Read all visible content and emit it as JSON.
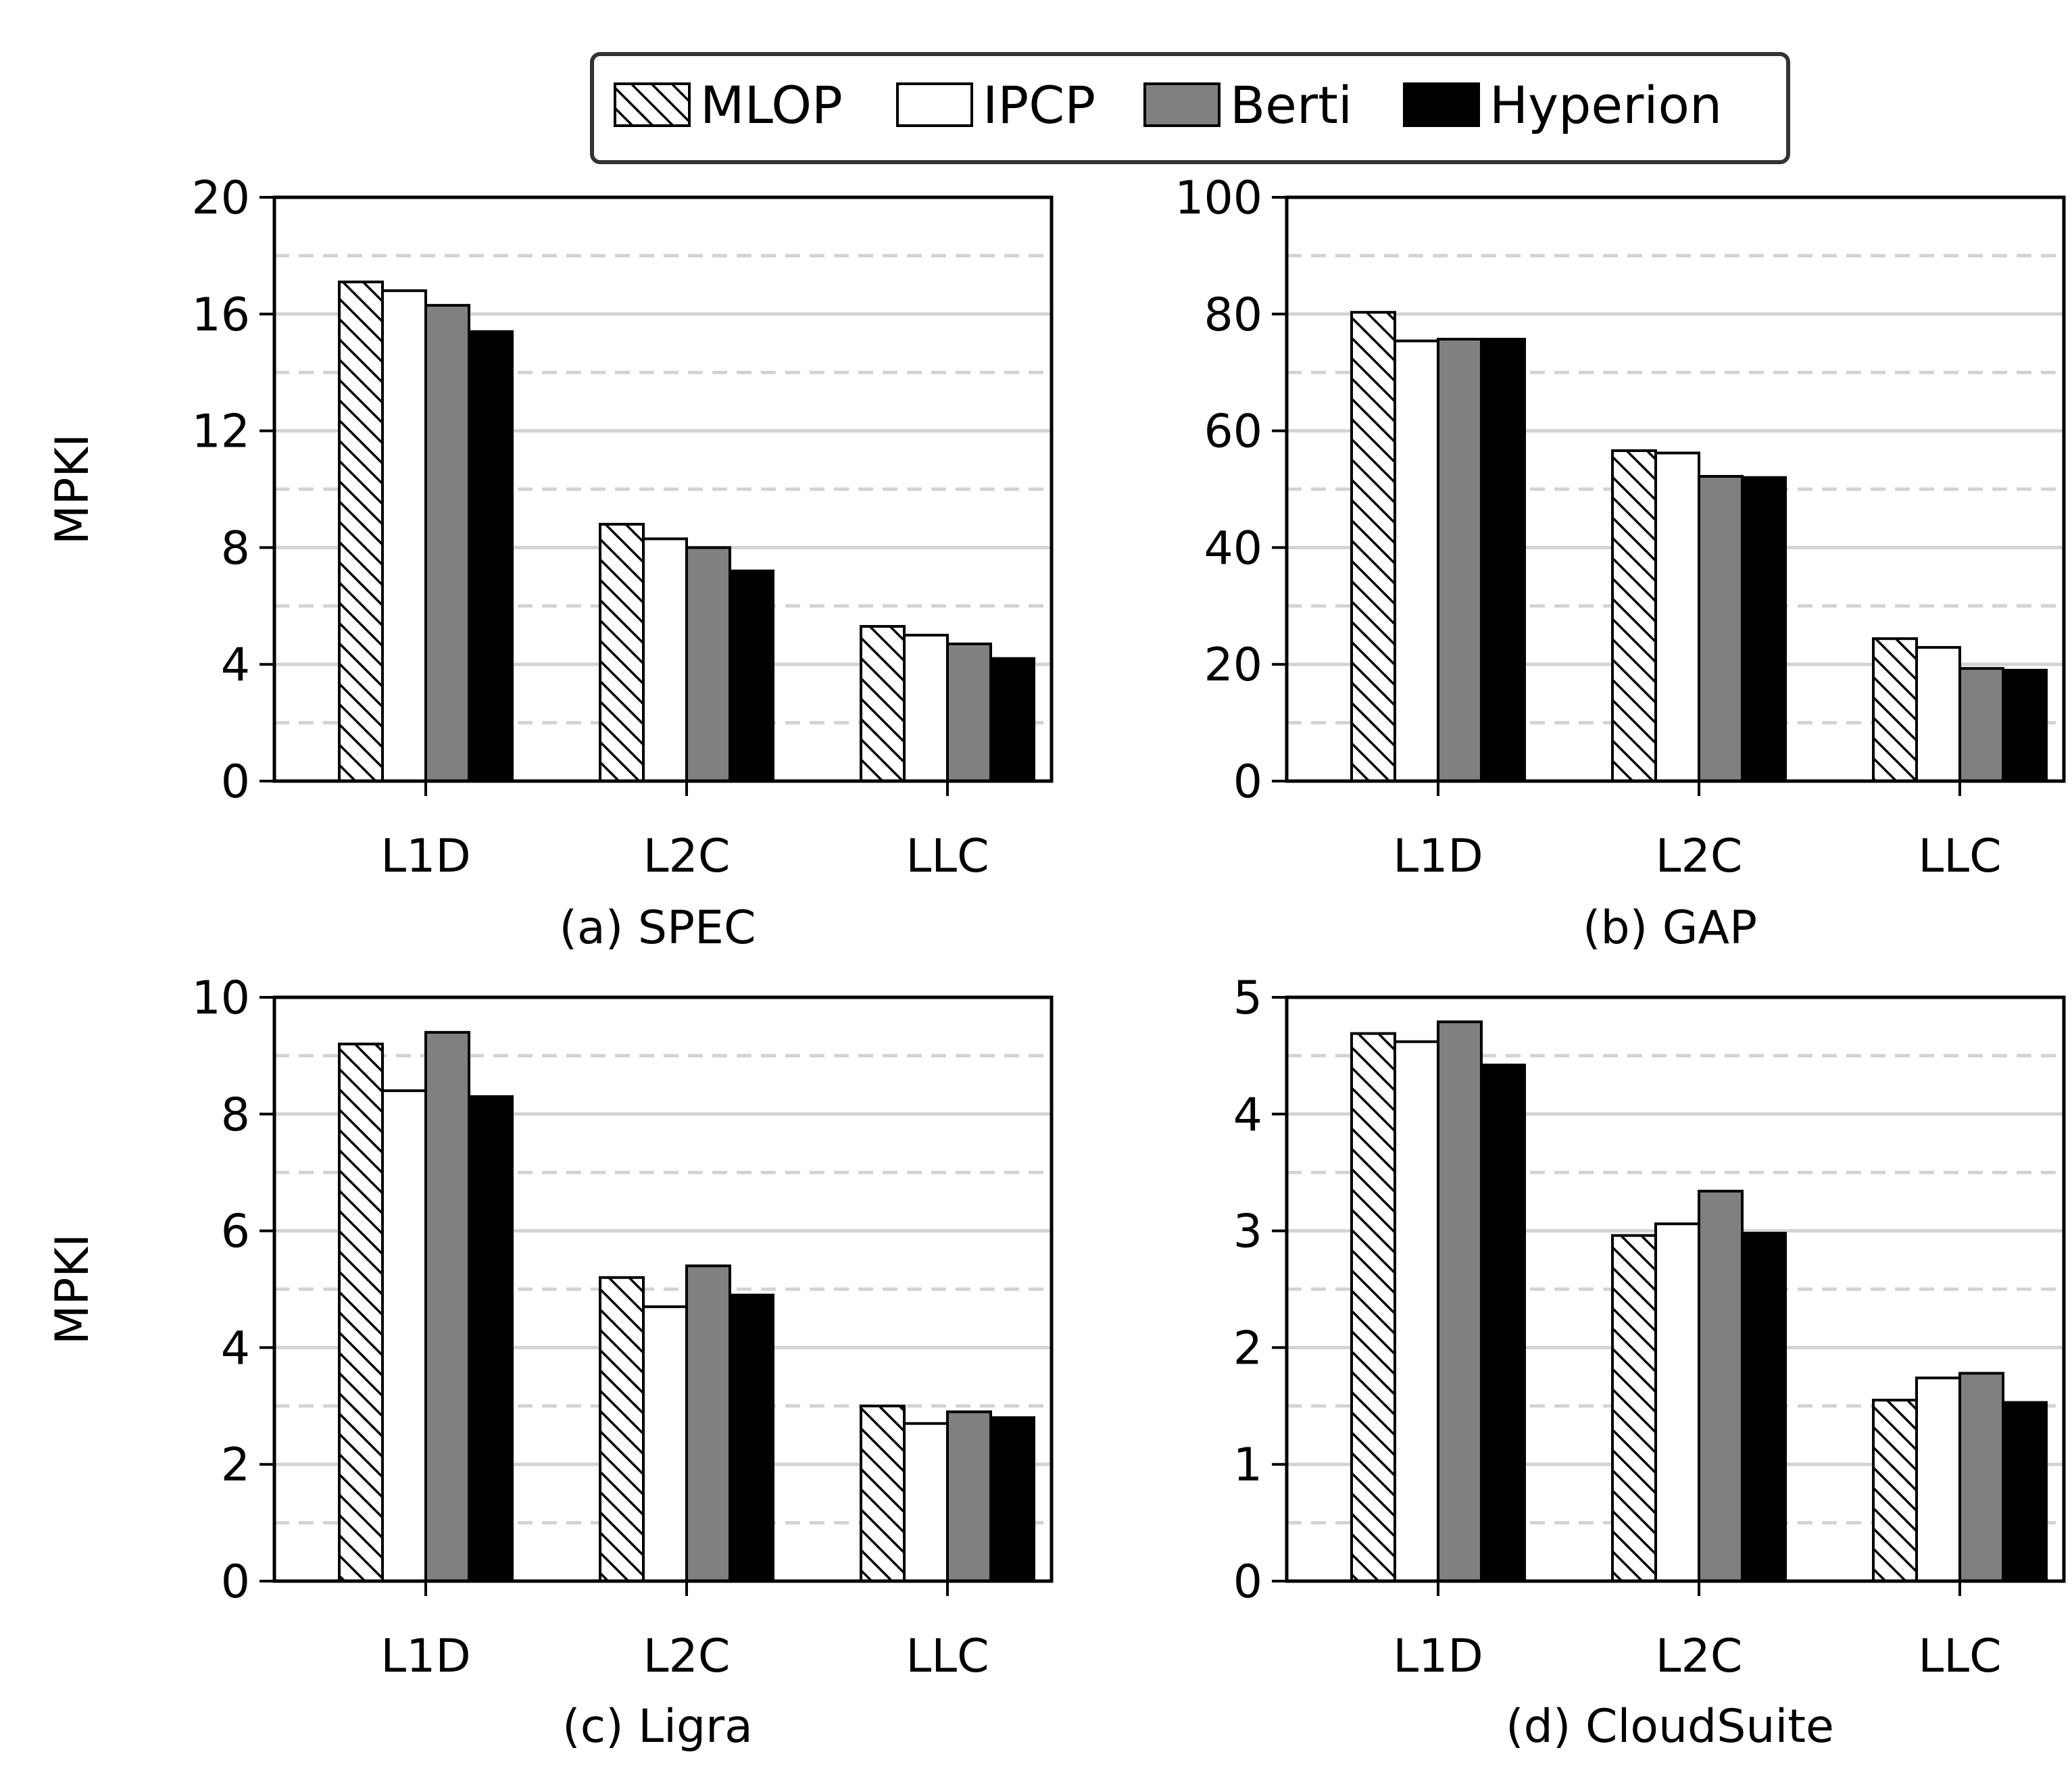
{
  "legend": {
    "placement": "top-center",
    "entries": [
      {
        "name": "MLOP",
        "style": "hatched"
      },
      {
        "name": "IPCP",
        "style": "white"
      },
      {
        "name": "Berti",
        "style": "gray"
      },
      {
        "name": "Hyperion",
        "style": "black"
      }
    ]
  },
  "colors": {
    "IPCP": "#ffffff",
    "Berti": "#808080",
    "Hyperion": "#000000",
    "grid": "#d3d3d3",
    "edge": "#000000"
  },
  "chart_data": [
    {
      "type": "bar",
      "title": "(a) SPEC",
      "ylabel": "MPKI",
      "categories": [
        "L1D",
        "L2C",
        "LLC"
      ],
      "ylim": [
        0,
        20
      ],
      "yticks": [
        0,
        4,
        8,
        12,
        16,
        20
      ],
      "grid": true,
      "series": [
        {
          "name": "MLOP",
          "values": [
            17.1,
            8.8,
            5.3
          ]
        },
        {
          "name": "IPCP",
          "values": [
            16.8,
            8.3,
            5.0
          ]
        },
        {
          "name": "Berti",
          "values": [
            16.3,
            8.0,
            4.7
          ]
        },
        {
          "name": "Hyperion",
          "values": [
            15.4,
            7.2,
            4.2
          ]
        }
      ]
    },
    {
      "type": "bar",
      "title": "(b) GAP",
      "ylabel": "",
      "categories": [
        "L1D",
        "L2C",
        "LLC"
      ],
      "ylim": [
        0,
        100
      ],
      "yticks": [
        0,
        20,
        40,
        60,
        80,
        100
      ],
      "grid": true,
      "series": [
        {
          "name": "MLOP",
          "values": [
            80.3,
            56.6,
            24.4
          ]
        },
        {
          "name": "IPCP",
          "values": [
            75.4,
            56.2,
            22.9
          ]
        },
        {
          "name": "Berti",
          "values": [
            75.7,
            52.2,
            19.3
          ]
        },
        {
          "name": "Hyperion",
          "values": [
            75.7,
            52.0,
            19.0
          ]
        }
      ]
    },
    {
      "type": "bar",
      "title": "(c) Ligra",
      "ylabel": "MPKI",
      "categories": [
        "L1D",
        "L2C",
        "LLC"
      ],
      "ylim": [
        0,
        10
      ],
      "yticks": [
        0,
        2,
        4,
        6,
        8,
        10
      ],
      "grid": true,
      "series": [
        {
          "name": "MLOP",
          "values": [
            9.2,
            5.2,
            3.0
          ]
        },
        {
          "name": "IPCP",
          "values": [
            8.4,
            4.7,
            2.7
          ]
        },
        {
          "name": "Berti",
          "values": [
            9.4,
            5.4,
            2.9
          ]
        },
        {
          "name": "Hyperion",
          "values": [
            8.3,
            4.9,
            2.8
          ]
        }
      ]
    },
    {
      "type": "bar",
      "title": "(d) CloudSuite",
      "ylabel": "",
      "categories": [
        "L1D",
        "L2C",
        "LLC"
      ],
      "ylim": [
        0,
        5
      ],
      "yticks": [
        0,
        1,
        2,
        3,
        4,
        5
      ],
      "grid": true,
      "series": [
        {
          "name": "MLOP",
          "values": [
            4.69,
            2.96,
            1.55
          ]
        },
        {
          "name": "IPCP",
          "values": [
            4.62,
            3.06,
            1.74
          ]
        },
        {
          "name": "Berti",
          "values": [
            4.79,
            3.34,
            1.78
          ]
        },
        {
          "name": "Hyperion",
          "values": [
            4.42,
            2.98,
            1.53
          ]
        }
      ]
    }
  ]
}
